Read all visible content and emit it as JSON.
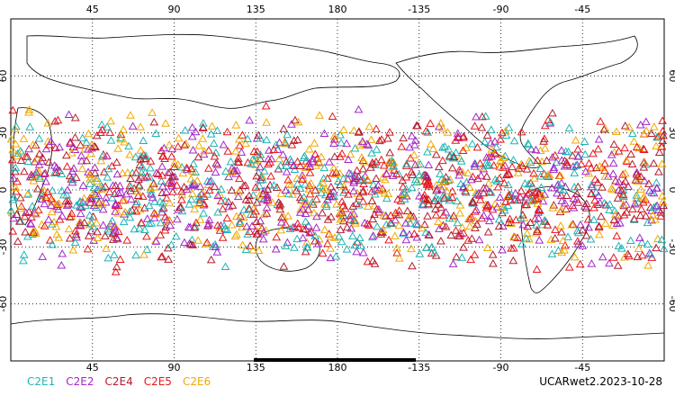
{
  "map": {
    "lon_ticks_top": [
      "45",
      "90",
      "135",
      "180",
      "-135",
      "-90",
      "-45"
    ],
    "lon_ticks_bottom": [
      "45",
      "90",
      "135",
      "180",
      "-135",
      "-90",
      "-45"
    ],
    "lat_ticks": [
      "60",
      "30",
      "0",
      "-30",
      "-60"
    ],
    "lat_band": [
      -45,
      45
    ],
    "seed": 20231028
  },
  "legend": {
    "items": [
      {
        "label": "C2E1",
        "color": "#1fb5b5"
      },
      {
        "label": "C2E2",
        "color": "#a326c9"
      },
      {
        "label": "C2E4",
        "color": "#b51c2b"
      },
      {
        "label": "C2E5",
        "color": "#e8161b"
      },
      {
        "label": "C2E6",
        "color": "#f2a900"
      }
    ]
  },
  "caption": "UCARwet2.2023-10-28"
}
